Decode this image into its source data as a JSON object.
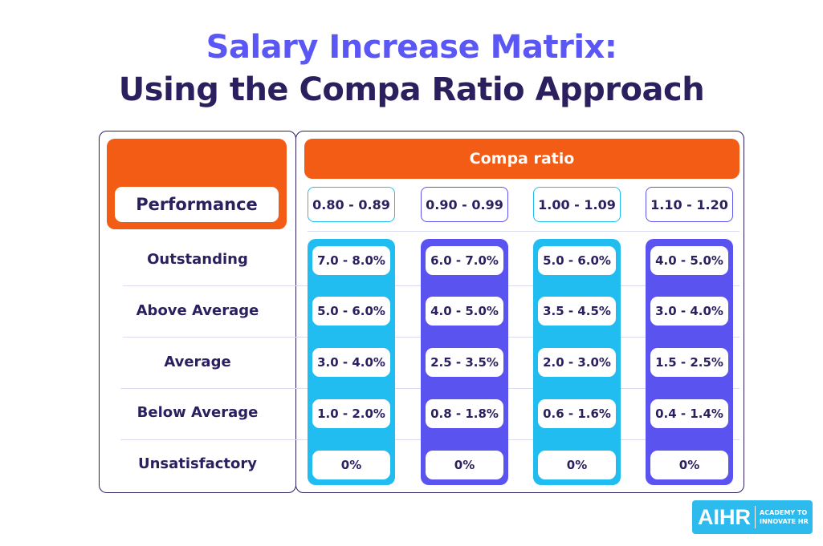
{
  "title": {
    "line1": "Salary Increase Matrix:",
    "line2": "Using the Compa Ratio Approach"
  },
  "performance_header": "Performance",
  "compa_header": "Compa ratio",
  "columns": [
    {
      "range": "0.80 - 0.89",
      "color": "#21bdf0",
      "values": [
        "7.0 - 8.0%",
        "5.0 - 6.0%",
        "3.0 - 4.0%",
        "1.0 - 2.0%",
        "0%"
      ]
    },
    {
      "range": "0.90 - 0.99",
      "color": "#5b53f0",
      "values": [
        "6.0 - 7.0%",
        "4.0 - 5.0%",
        "2.5 - 3.5%",
        "0.8 - 1.8%",
        "0%"
      ]
    },
    {
      "range": "1.00 - 1.09",
      "color": "#21bdf0",
      "values": [
        "5.0 - 6.0%",
        "3.5 - 4.5%",
        "2.0 - 3.0%",
        "0.6 - 1.6%",
        "0%"
      ]
    },
    {
      "range": "1.10 - 1.20",
      "color": "#5b53f0",
      "values": [
        "4.0 - 5.0%",
        "3.0 - 4.0%",
        "1.5 - 2.5%",
        "0.4 - 1.4%",
        "0%"
      ]
    }
  ],
  "rows": [
    "Outstanding",
    "Above Average",
    "Average",
    "Below Average",
    "Unsatisfactory"
  ],
  "logo": {
    "mark": "AIHR",
    "tagline": "ACADEMY TO INNOVATE HR",
    "color": "#2dbbee"
  },
  "colors": {
    "orange": "#f25c14",
    "navy": "#2b1f5e",
    "title_accent": "#5b57f5"
  }
}
